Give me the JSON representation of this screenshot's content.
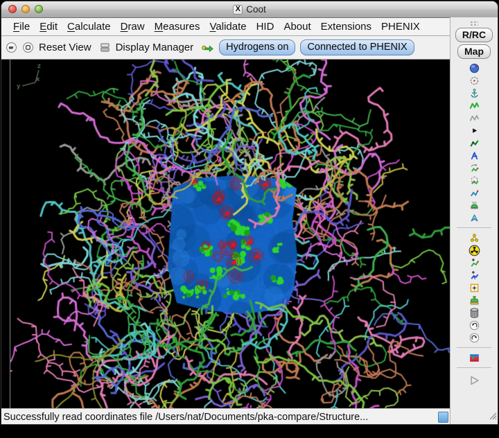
{
  "window": {
    "title": "Coot"
  },
  "theme": {
    "toggle_fill_top": "#d9e9fa",
    "toggle_fill_bottom": "#9cc0ea",
    "toggle_border": "#5f87b8",
    "canvas_bg": "#000000",
    "density_blue": "#1467cb",
    "density_blue_dark": "#0b4f9e",
    "density_blue_light": "#2f86e4",
    "diff_positive_green": "#2bd62b",
    "diff_negative_red": "#c41414",
    "stick_palette": [
      "#b9b93e",
      "#cfcf55",
      "#3fae4a",
      "#74c43f",
      "#2e9e3a",
      "#c44fc4",
      "#d36bd3",
      "#7b5fd0",
      "#5a55c8",
      "#c07858",
      "#bf7a50",
      "#4fc3c3",
      "#7fd4d4",
      "#e07ab0",
      "#9a9a9a",
      "#5566cc",
      "#8fbf4f"
    ],
    "tail_color": "#8f8f2f",
    "axes_color": "#7d9e7d"
  },
  "menu_bar": {
    "items": [
      {
        "label": "File",
        "mnemonic": 1
      },
      {
        "label": "Edit",
        "mnemonic": 1
      },
      {
        "label": "Calculate",
        "mnemonic": 1
      },
      {
        "label": "Draw",
        "mnemonic": 1
      },
      {
        "label": "Measures",
        "mnemonic": 1
      },
      {
        "label": "Validate",
        "mnemonic": 1
      },
      {
        "label": "HID",
        "mnemonic": 0
      },
      {
        "label": "About",
        "mnemonic": 0
      },
      {
        "label": "Extensions",
        "mnemonic": 0
      },
      {
        "label": "PHENIX",
        "mnemonic": 0
      }
    ]
  },
  "toolbar": {
    "reset_view_label": "Reset View",
    "display_manager_label": "Display Manager",
    "hydrogens_label": "Hydrogens on",
    "phenix_label": "Connected to PHENIX"
  },
  "right_panel": {
    "rrc_label": "R/RC",
    "map_label": "Map",
    "tools": [
      {
        "name": "view-sphere",
        "kind": "sphere"
      },
      {
        "name": "recentre-target",
        "kind": "target"
      },
      {
        "name": "anchor-restraints",
        "kind": "anchor"
      },
      {
        "name": "real-space-refine",
        "kind": "zigGreen"
      },
      {
        "name": "regularize-zone",
        "kind": "zigGray"
      },
      {
        "name": "more-tools",
        "kind": "tri"
      },
      {
        "name": "rigid-body-fit",
        "kind": "rigid"
      },
      {
        "name": "rotate-translate",
        "kind": "lambda"
      },
      {
        "name": "auto-fit-rotamer",
        "kind": "autofit"
      },
      {
        "name": "rotamers",
        "kind": "rotamer"
      },
      {
        "name": "edit-chi-angles",
        "kind": "editchi"
      },
      {
        "name": "flip-sidechain-180",
        "kind": "side"
      },
      {
        "name": "jed-flip",
        "kind": "jed"
      },
      {
        "kind": "sep"
      },
      {
        "name": "mutate-residue",
        "kind": "mutate"
      },
      {
        "name": "simple-mutate",
        "kind": "radioactive"
      },
      {
        "name": "add-terminal-residue",
        "kind": "addterm"
      },
      {
        "name": "add-alt-conf",
        "kind": "addalt"
      },
      {
        "name": "place-atom",
        "kind": "placeatom"
      },
      {
        "name": "find-waters",
        "kind": "stamp"
      },
      {
        "name": "delete-item",
        "kind": "trash"
      },
      {
        "name": "undo",
        "kind": "undo"
      },
      {
        "name": "redo",
        "kind": "redo"
      },
      {
        "kind": "sep"
      },
      {
        "name": "run-refmac",
        "kind": "flag"
      },
      {
        "kind": "sep"
      },
      {
        "name": "play",
        "kind": "playOutline"
      }
    ]
  },
  "viewport": {
    "axes": {
      "z": "z",
      "x": "x",
      "y": "y"
    }
  },
  "status_bar": {
    "message": "Successfully read coordinates file /Users/nat/Documents/pka-compare/Structure..."
  }
}
